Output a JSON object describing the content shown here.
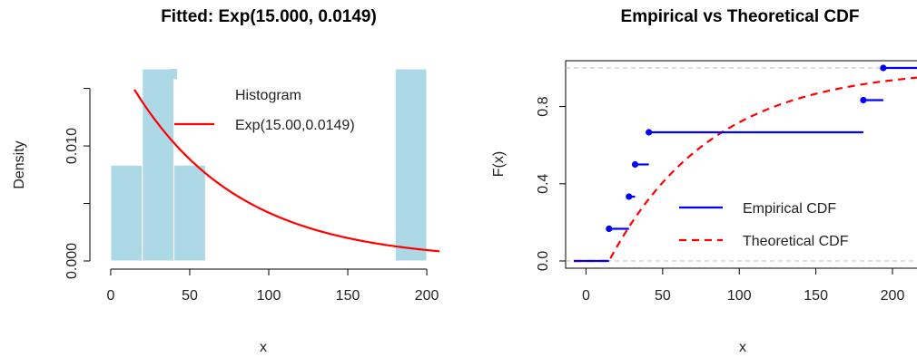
{
  "chart_data": [
    {
      "type": "bar",
      "title": "Fitted: Exp(15.000, 0.0149)",
      "xlabel": "x",
      "ylabel": "Density",
      "xticks": [
        "0",
        "50",
        "100",
        "150",
        "200"
      ],
      "xtick_values": [
        0,
        50,
        100,
        150,
        200
      ],
      "yticks": [
        "0.000",
        "0.010"
      ],
      "ytick_values": [
        0,
        0.01
      ],
      "xlim": [
        -8,
        208
      ],
      "ylim": [
        0,
        0.0167
      ],
      "bins": [
        {
          "x0": 0,
          "x1": 20,
          "density": 0.00833
        },
        {
          "x0": 20,
          "x1": 40,
          "density": 0.0167
        },
        {
          "x0": 40,
          "x1": 60,
          "density": 0.00833
        },
        {
          "x0": 180,
          "x1": 200,
          "density": 0.0167
        }
      ],
      "legend_swatch_bin": {
        "x0": 38,
        "x1": 42,
        "y0": 0.0158,
        "y1": 0.0167
      },
      "curve": {
        "name": "Exp(15.00,0.0149)",
        "shift": 15,
        "rate": 0.0149,
        "x_from": 15,
        "x_to": 208,
        "color": "#ff0000"
      },
      "legend": {
        "position": "top-right",
        "items": [
          "Histogram",
          "Exp(15.00,0.0149)"
        ]
      },
      "colors": {
        "bars": "#add8e6",
        "curve": "#ff0000"
      }
    },
    {
      "type": "line",
      "title": "Empirical vs Theoretical CDF",
      "xlabel": "x",
      "ylabel": "F(x)",
      "xticks": [
        "0",
        "50",
        "100",
        "150",
        "200"
      ],
      "xtick_values": [
        0,
        50,
        100,
        150,
        200
      ],
      "yticks": [
        "0.0",
        "0.4",
        "0.8"
      ],
      "ytick_values": [
        0,
        0.4,
        0.8
      ],
      "xlim": [
        -8,
        216
      ],
      "ylim": [
        0,
        1
      ],
      "reference_lines": [
        0,
        1
      ],
      "empirical_steps": [
        {
          "x0": -8,
          "x1": 15,
          "y": 0.0,
          "closed_point": false
        },
        {
          "x0": 15,
          "x1": 28,
          "y": 0.1667,
          "closed_point": true
        },
        {
          "x0": 28,
          "x1": 32,
          "y": 0.3333,
          "closed_point": true
        },
        {
          "x0": 32,
          "x1": 41,
          "y": 0.5,
          "closed_point": true
        },
        {
          "x0": 41,
          "x1": 181,
          "y": 0.6667,
          "closed_point": true
        },
        {
          "x0": 181,
          "x1": 194,
          "y": 0.8333,
          "closed_point": true
        },
        {
          "x0": 194,
          "x1": 216,
          "y": 1.0,
          "closed_point": true
        }
      ],
      "theoretical": {
        "name": "Theoretical CDF",
        "shift": 15,
        "rate": 0.0149,
        "color": "#ff0000",
        "dash": "dashed"
      },
      "legend": {
        "position": "bottom-right",
        "items": [
          "Empirical CDF",
          "Theoretical CDF"
        ]
      },
      "colors": {
        "empirical": "#0000ff",
        "theoretical": "#ff0000",
        "reference": "#bebebe"
      }
    }
  ]
}
